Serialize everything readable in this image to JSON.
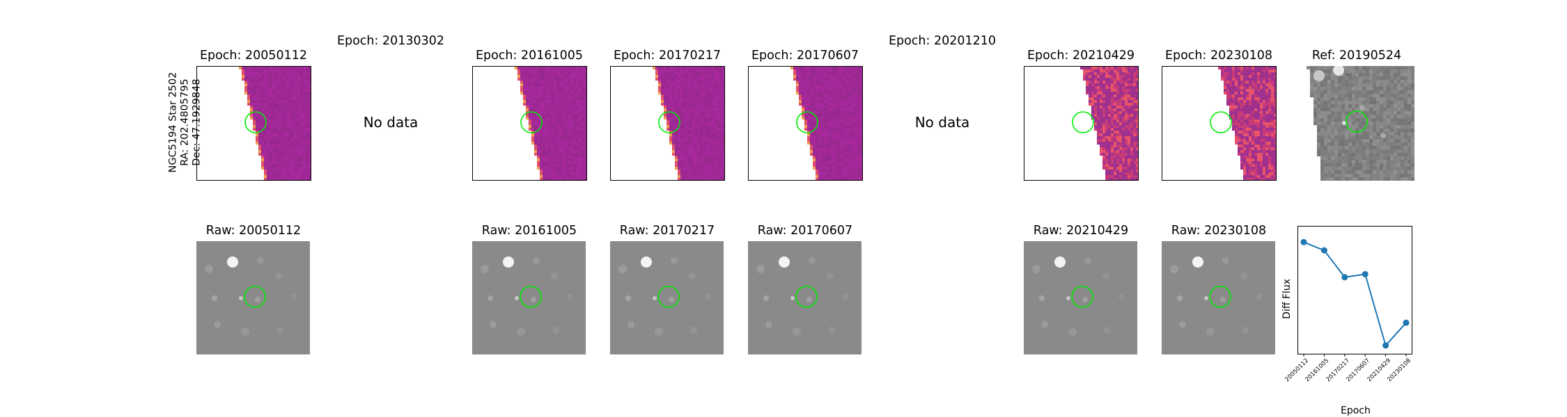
{
  "star_label": {
    "name": "NGC5194 Star 2502",
    "ra": "RA: 202.4805795",
    "dec": "Dec: 47.1929848"
  },
  "diff_row": [
    {
      "title": "Epoch: 20050112",
      "has_data": true
    },
    {
      "title": "Epoch: 20130302",
      "has_data": false,
      "message": "No data"
    },
    {
      "title": "Epoch: 20161005",
      "has_data": true
    },
    {
      "title": "Epoch: 20170217",
      "has_data": true
    },
    {
      "title": "Epoch: 20170607",
      "has_data": true
    },
    {
      "title": "Epoch: 20201210",
      "has_data": false,
      "message": "No data"
    },
    {
      "title": "Epoch: 20210429",
      "has_data": true
    },
    {
      "title": "Epoch: 20230108",
      "has_data": true
    },
    {
      "title": "Ref: 20190524",
      "has_data": true
    }
  ],
  "raw_row": [
    {
      "title": "Raw: 20050112"
    },
    {
      "title": "Raw: 20161005"
    },
    {
      "title": "Raw: 20170217"
    },
    {
      "title": "Raw: 20170607"
    },
    {
      "title": "Raw: 20210429"
    },
    {
      "title": "Raw: 20230108"
    }
  ],
  "colors": {
    "marker_circle": "#00ee00",
    "diff_purple": "#a0308e",
    "diff_orange": "#e8546a",
    "raw_gray": "#8a8a8a",
    "line": "#1f77b4"
  },
  "chart_data": {
    "type": "line",
    "xlabel": "Epoch",
    "ylabel": "Diff Flux",
    "categories": [
      "20050112",
      "20161005",
      "20170217",
      "20170607",
      "20210429",
      "20230108"
    ],
    "values": [
      0.94,
      0.86,
      0.6,
      0.63,
      -0.06,
      0.16
    ],
    "ylim": [
      -0.1,
      1.05
    ],
    "yticks_shown": false,
    "grid": false
  }
}
